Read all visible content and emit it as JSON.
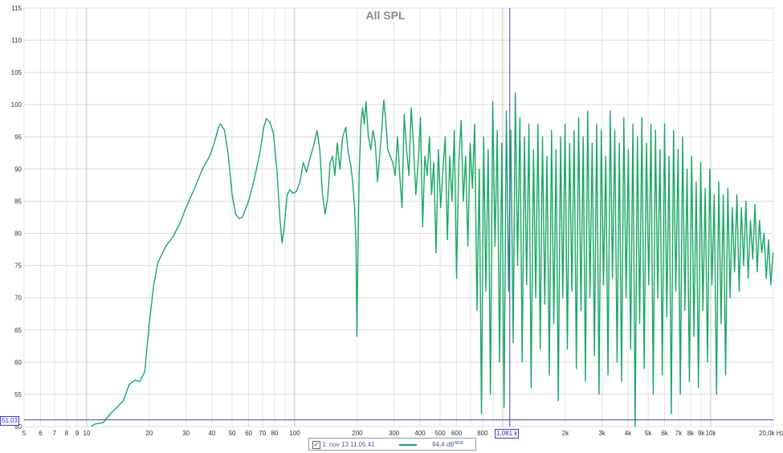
{
  "chart_data": {
    "type": "line",
    "title": "All SPL",
    "x_scale": "log",
    "x_unit": "Hz",
    "xlim": [
      5,
      20000
    ],
    "ylim": [
      50,
      115
    ],
    "y_ticks": [
      50,
      55,
      60,
      65,
      70,
      75,
      80,
      85,
      90,
      95,
      100,
      105,
      110,
      115
    ],
    "y_unit": "dB",
    "x_ticks": [
      {
        "v": 5,
        "label": "5"
      },
      {
        "v": 6,
        "label": "6"
      },
      {
        "v": 7,
        "label": "7"
      },
      {
        "v": 8,
        "label": "8"
      },
      {
        "v": 9,
        "label": "9"
      },
      {
        "v": 10,
        "label": "10"
      },
      {
        "v": 20,
        "label": "20"
      },
      {
        "v": 30,
        "label": "30"
      },
      {
        "v": 40,
        "label": "40"
      },
      {
        "v": 50,
        "label": "50"
      },
      {
        "v": 60,
        "label": "60"
      },
      {
        "v": 70,
        "label": "70"
      },
      {
        "v": 80,
        "label": "80"
      },
      {
        "v": 100,
        "label": "100"
      },
      {
        "v": 200,
        "label": "200"
      },
      {
        "v": 300,
        "label": "300"
      },
      {
        "v": 400,
        "label": "400"
      },
      {
        "v": 500,
        "label": "500"
      },
      {
        "v": 600,
        "label": "600"
      },
      {
        "v": 800,
        "label": "800"
      },
      {
        "v": 2000,
        "label": "2k"
      },
      {
        "v": 3000,
        "label": "3k"
      },
      {
        "v": 4000,
        "label": "4k"
      },
      {
        "v": 5000,
        "label": "5k"
      },
      {
        "v": 6000,
        "label": "6k"
      },
      {
        "v": 7000,
        "label": "7k"
      },
      {
        "v": 8000,
        "label": "8k"
      },
      {
        "v": 9000,
        "label": "9k"
      },
      {
        "v": 10000,
        "label": "10k"
      },
      {
        "v": 20000,
        "label": "20,0k Hz"
      }
    ],
    "grid": true,
    "legend": "bottom-center",
    "cursor": {
      "x_value": 1081,
      "x_label": "1,081 k",
      "y_value": 51.03,
      "y_label": "51,03"
    },
    "series": [
      {
        "name": "1: nov 13 11.05.41",
        "color": "#19a864",
        "legend_value": "94,4 dB",
        "legend_tag": "NEW",
        "points": [
          [
            10.5,
            50.0
          ],
          [
            11,
            50.4
          ],
          [
            12,
            50.6
          ],
          [
            13,
            52.0
          ],
          [
            14,
            53.0
          ],
          [
            15,
            54.0
          ],
          [
            16,
            56.5
          ],
          [
            17,
            57.2
          ],
          [
            18,
            57.0
          ],
          [
            19,
            58.5
          ],
          [
            20,
            66.0
          ],
          [
            21,
            72.0
          ],
          [
            22,
            75.5
          ],
          [
            24,
            78.0
          ],
          [
            26,
            79.5
          ],
          [
            28,
            81.5
          ],
          [
            30,
            84.0
          ],
          [
            33,
            87.0
          ],
          [
            36,
            90.0
          ],
          [
            39,
            92.0
          ],
          [
            41,
            94.0
          ],
          [
            43,
            96.5
          ],
          [
            44,
            97.0
          ],
          [
            46,
            96.0
          ],
          [
            48,
            92.0
          ],
          [
            50,
            86.0
          ],
          [
            52,
            83.0
          ],
          [
            54,
            82.3
          ],
          [
            56,
            82.5
          ],
          [
            60,
            85.0
          ],
          [
            64,
            88.5
          ],
          [
            68,
            92.5
          ],
          [
            71,
            96.5
          ],
          [
            73,
            97.8
          ],
          [
            76,
            97.3
          ],
          [
            79,
            95.5
          ],
          [
            82,
            90.0
          ],
          [
            85,
            82.0
          ],
          [
            87,
            78.5
          ],
          [
            89,
            81.0
          ],
          [
            92,
            86.0
          ],
          [
            95,
            86.8
          ],
          [
            98,
            86.2
          ],
          [
            102,
            86.5
          ],
          [
            106,
            88.0
          ],
          [
            110,
            91.0
          ],
          [
            114,
            89.5
          ],
          [
            118,
            91.5
          ],
          [
            123,
            93.5
          ],
          [
            128,
            96.0
          ],
          [
            132,
            93.0
          ],
          [
            136,
            86.0
          ],
          [
            140,
            83.0
          ],
          [
            144,
            85.5
          ],
          [
            148,
            91.0
          ],
          [
            152,
            92.0
          ],
          [
            156,
            89.0
          ],
          [
            160,
            94.0
          ],
          [
            165,
            90.0
          ],
          [
            170,
            95.0
          ],
          [
            176,
            96.5
          ],
          [
            180,
            93.0
          ],
          [
            186,
            90.5
          ],
          [
            190,
            88.0
          ],
          [
            194,
            84.0
          ],
          [
            197,
            78.0
          ],
          [
            199,
            64.0
          ],
          [
            201,
            75.0
          ],
          [
            204,
            89.0
          ],
          [
            208,
            97.0
          ],
          [
            212,
            99.5
          ],
          [
            216,
            97.0
          ],
          [
            220,
            100.5
          ],
          [
            226,
            95.0
          ],
          [
            232,
            93.0
          ],
          [
            238,
            96.0
          ],
          [
            244,
            94.0
          ],
          [
            250,
            88.0
          ],
          [
            256,
            92.0
          ],
          [
            262,
            96.0
          ],
          [
            268,
            100.7
          ],
          [
            274,
            97.5
          ],
          [
            280,
            93.0
          ],
          [
            288,
            92.0
          ],
          [
            296,
            91.0
          ],
          [
            304,
            89.0
          ],
          [
            312,
            95.0
          ],
          [
            320,
            89.0
          ],
          [
            328,
            84.0
          ],
          [
            336,
            98.5
          ],
          [
            345,
            93.0
          ],
          [
            354,
            89.0
          ],
          [
            363,
            99.5
          ],
          [
            372,
            94.0
          ],
          [
            382,
            86.0
          ],
          [
            392,
            91.0
          ],
          [
            402,
            98.0
          ],
          [
            412,
            81.0
          ],
          [
            422,
            92.0
          ],
          [
            433,
            89.0
          ],
          [
            444,
            95.0
          ],
          [
            455,
            86.0
          ],
          [
            466,
            91.0
          ],
          [
            478,
            77.0
          ],
          [
            490,
            93.0
          ],
          [
            503,
            84.0
          ],
          [
            516,
            90.0
          ],
          [
            529,
            95.0
          ],
          [
            542,
            79.0
          ],
          [
            556,
            92.0
          ],
          [
            570,
            85.0
          ],
          [
            585,
            96.0
          ],
          [
            600,
            73.0
          ],
          [
            615,
            91.0
          ],
          [
            631,
            97.5
          ],
          [
            647,
            85.0
          ],
          [
            663,
            92.0
          ],
          [
            680,
            78.0
          ],
          [
            697,
            94.0
          ],
          [
            715,
            87.0
          ],
          [
            733,
            97.0
          ],
          [
            752,
            68.0
          ],
          [
            771,
            90.0
          ],
          [
            790,
            52.0
          ],
          [
            810,
            95.0
          ],
          [
            830,
            71.0
          ],
          [
            851,
            93.0
          ],
          [
            873,
            55.0
          ],
          [
            895,
            100.5
          ],
          [
            918,
            78.0
          ],
          [
            941,
            96.0
          ],
          [
            965,
            60.0
          ],
          [
            990,
            94.0
          ],
          [
            1015,
            53.0
          ],
          [
            1041,
            99.0
          ],
          [
            1067,
            71.0
          ],
          [
            1094,
            96.0
          ],
          [
            1122,
            63.0
          ],
          [
            1150,
            101.8
          ],
          [
            1179,
            75.0
          ],
          [
            1209,
            98.0
          ],
          [
            1240,
            60.0
          ],
          [
            1271,
            95.0
          ],
          [
            1303,
            72.0
          ],
          [
            1336,
            97.0
          ],
          [
            1370,
            56.0
          ],
          [
            1405,
            93.0
          ],
          [
            1441,
            70.0
          ],
          [
            1477,
            97.0
          ],
          [
            1514,
            62.0
          ],
          [
            1552,
            95.0
          ],
          [
            1592,
            69.0
          ],
          [
            1632,
            92.0
          ],
          [
            1674,
            58.0
          ],
          [
            1716,
            96.0
          ],
          [
            1760,
            66.0
          ],
          [
            1804,
            93.0
          ],
          [
            1850,
            54.0
          ],
          [
            1897,
            95.0
          ],
          [
            1945,
            70.0
          ],
          [
            1994,
            97.0
          ],
          [
            2045,
            62.0
          ],
          [
            2097,
            94.0
          ],
          [
            2150,
            71.0
          ],
          [
            2204,
            96.0
          ],
          [
            2260,
            59.0
          ],
          [
            2317,
            98.0
          ],
          [
            2376,
            68.0
          ],
          [
            2436,
            95.0
          ],
          [
            2498,
            57.0
          ],
          [
            2561,
            99.0
          ],
          [
            2626,
            70.0
          ],
          [
            2692,
            94.0
          ],
          [
            2760,
            61.0
          ],
          [
            2830,
            97.0
          ],
          [
            2902,
            55.0
          ],
          [
            2975,
            96.0
          ],
          [
            3051,
            72.0
          ],
          [
            3128,
            92.0
          ],
          [
            3207,
            58.0
          ],
          [
            3288,
            99.0
          ],
          [
            3372,
            73.0
          ],
          [
            3457,
            96.0
          ],
          [
            3545,
            60.0
          ],
          [
            3635,
            94.0
          ],
          [
            3727,
            57.0
          ],
          [
            3821,
            98.0
          ],
          [
            3918,
            70.0
          ],
          [
            4017,
            93.0
          ],
          [
            4119,
            62.0
          ],
          [
            4223,
            97.0
          ],
          [
            4330,
            50.0
          ],
          [
            4440,
            95.0
          ],
          [
            4552,
            66.0
          ],
          [
            4667,
            98.0
          ],
          [
            4786,
            59.0
          ],
          [
            4907,
            94.0
          ],
          [
            5031,
            72.0
          ],
          [
            5159,
            97.0
          ],
          [
            5290,
            55.0
          ],
          [
            5424,
            96.0
          ],
          [
            5561,
            70.0
          ],
          [
            5702,
            93.0
          ],
          [
            5847,
            58.0
          ],
          [
            5995,
            97.0
          ],
          [
            6147,
            67.0
          ],
          [
            6303,
            92.0
          ],
          [
            6462,
            52.0
          ],
          [
            6626,
            96.0
          ],
          [
            6794,
            71.0
          ],
          [
            6966,
            93.0
          ],
          [
            7143,
            55.0
          ],
          [
            7324,
            95.0
          ],
          [
            7509,
            68.0
          ],
          [
            7700,
            90.0
          ],
          [
            7895,
            57.0
          ],
          [
            8095,
            92.0
          ],
          [
            8300,
            64.0
          ],
          [
            8510,
            88.0
          ],
          [
            8726,
            56.0
          ],
          [
            8947,
            91.0
          ],
          [
            9174,
            68.0
          ],
          [
            9406,
            87.0
          ],
          [
            9645,
            60.0
          ],
          [
            9889,
            90.0
          ],
          [
            10140,
            72.0
          ],
          [
            10397,
            86.0
          ],
          [
            10660,
            55.0
          ],
          [
            10931,
            88.0
          ],
          [
            11208,
            66.0
          ],
          [
            11492,
            86.0
          ],
          [
            11783,
            58.0
          ],
          [
            12082,
            87.0
          ],
          [
            12388,
            70.0
          ],
          [
            12702,
            84.0
          ],
          [
            13024,
            74.0
          ],
          [
            13354,
            86.0
          ],
          [
            13693,
            71.0
          ],
          [
            14040,
            84.0
          ],
          [
            14396,
            75.0
          ],
          [
            14761,
            85.0
          ],
          [
            15135,
            73.0
          ],
          [
            15518,
            82.0
          ],
          [
            15912,
            76.0
          ],
          [
            16315,
            84.5
          ],
          [
            16728,
            74.0
          ],
          [
            17152,
            82.0
          ],
          [
            17587,
            77.0
          ],
          [
            18033,
            80.0
          ],
          [
            18490,
            73.0
          ],
          [
            18958,
            79.0
          ],
          [
            19439,
            72.0
          ],
          [
            19932,
            77.0
          ]
        ]
      }
    ]
  }
}
